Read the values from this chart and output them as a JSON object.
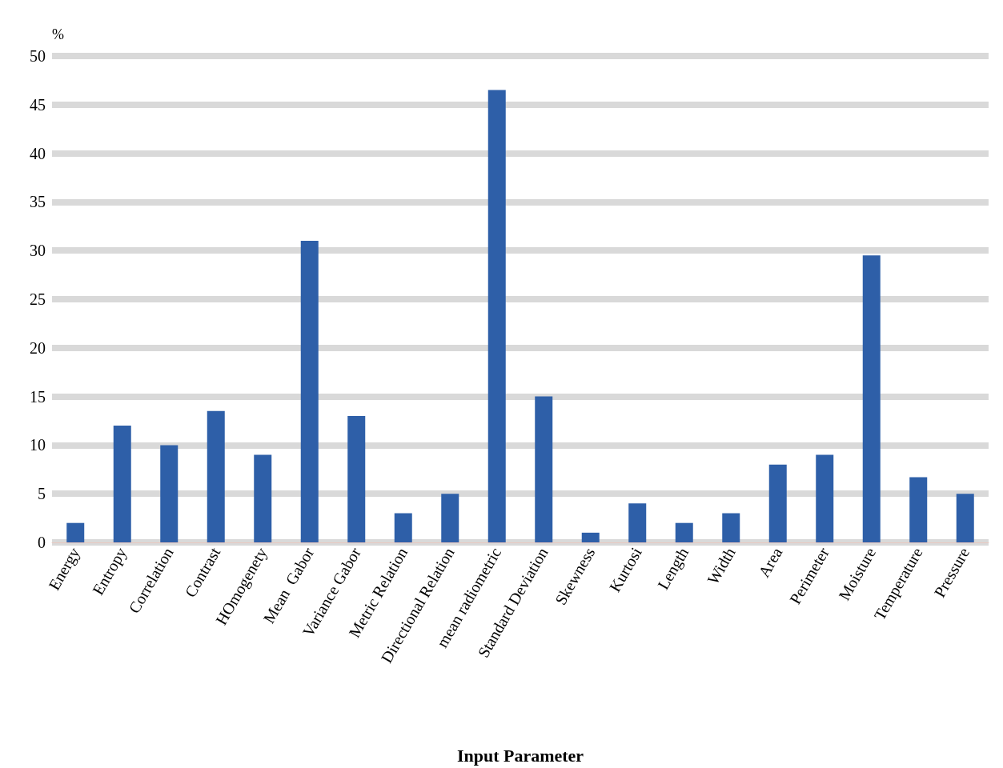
{
  "chart_data": {
    "type": "bar",
    "ylabel": "%",
    "xlabel": "Input Parameter",
    "categories": [
      "Energy",
      "Entropy",
      "Correlation",
      "Contrast",
      "HOmogenety",
      "Mean  Gabor",
      "Variance Gabor",
      "Metric Relation",
      "Directional Relation",
      "mean radiometric",
      "Standard Deviation",
      "Skewness",
      "Kurtosi",
      "Length",
      "Width",
      "Area",
      "Perimeter",
      "Moisture",
      "Temperature",
      "Pressure"
    ],
    "values": [
      2,
      12,
      10,
      13.5,
      9,
      31,
      13,
      3,
      5,
      46.5,
      15,
      1,
      4,
      2,
      3,
      8,
      9,
      29.5,
      6.7,
      5
    ],
    "color": "#2e5fa8",
    "ylim": [
      0,
      50
    ],
    "yticks": [
      0,
      5,
      10,
      15,
      20,
      25,
      30,
      35,
      40,
      45,
      50
    ],
    "grid": "y"
  }
}
